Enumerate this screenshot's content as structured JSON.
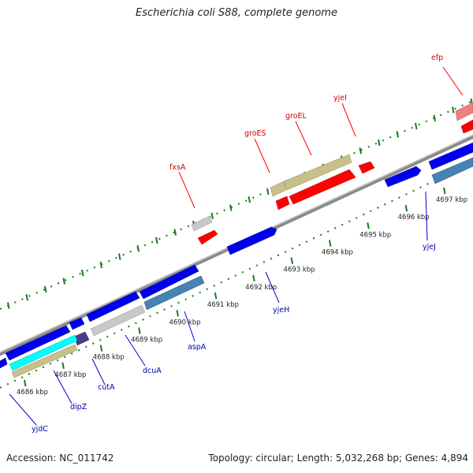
{
  "title": "Escherichia coli S88, complete genome",
  "footer": {
    "accession": "Accession: NC_011742",
    "summary": "Topology: circular; Length: 5,032,268 bp; Genes: 4,894"
  },
  "colors": {
    "forward_gene": "#ff0000",
    "reverse_gene": "#0000ee",
    "backbone": "#8a8a8a",
    "tick": "#1a7a1a",
    "forward_label": "#cc0000",
    "reverse_label": "#0000aa"
  },
  "scale": {
    "unit": "kbp",
    "ticks": [
      {
        "kbp": 4686,
        "label": "4686 kbp"
      },
      {
        "kbp": 4687,
        "label": "4687 kbp"
      },
      {
        "kbp": 4688,
        "label": "4688 kbp"
      },
      {
        "kbp": 4689,
        "label": "4689 kbp"
      },
      {
        "kbp": 4690,
        "label": "4690 kbp"
      },
      {
        "kbp": 4691,
        "label": "4691 kbp"
      },
      {
        "kbp": 4692,
        "label": "4692 kbp"
      },
      {
        "kbp": 4693,
        "label": "4693 kbp"
      },
      {
        "kbp": 4694,
        "label": "4694 kbp"
      },
      {
        "kbp": 4695,
        "label": "4695 kbp"
      },
      {
        "kbp": 4696,
        "label": "4696 kbp"
      },
      {
        "kbp": 4697,
        "label": "4697 kbp"
      }
    ]
  },
  "genes": [
    {
      "name": "efp",
      "strand": "forward"
    },
    {
      "name": "yjeI",
      "strand": "forward"
    },
    {
      "name": "groEL",
      "strand": "forward"
    },
    {
      "name": "groES",
      "strand": "forward"
    },
    {
      "name": "fxsA",
      "strand": "forward"
    },
    {
      "name": "yjeJ",
      "strand": "reverse"
    },
    {
      "name": "yjeH",
      "strand": "reverse"
    },
    {
      "name": "aspA",
      "strand": "reverse"
    },
    {
      "name": "dcuA",
      "strand": "reverse"
    },
    {
      "name": "cutA",
      "strand": "reverse"
    },
    {
      "name": "dipZ",
      "strand": "reverse"
    },
    {
      "name": "yjdC",
      "strand": "reverse"
    }
  ]
}
